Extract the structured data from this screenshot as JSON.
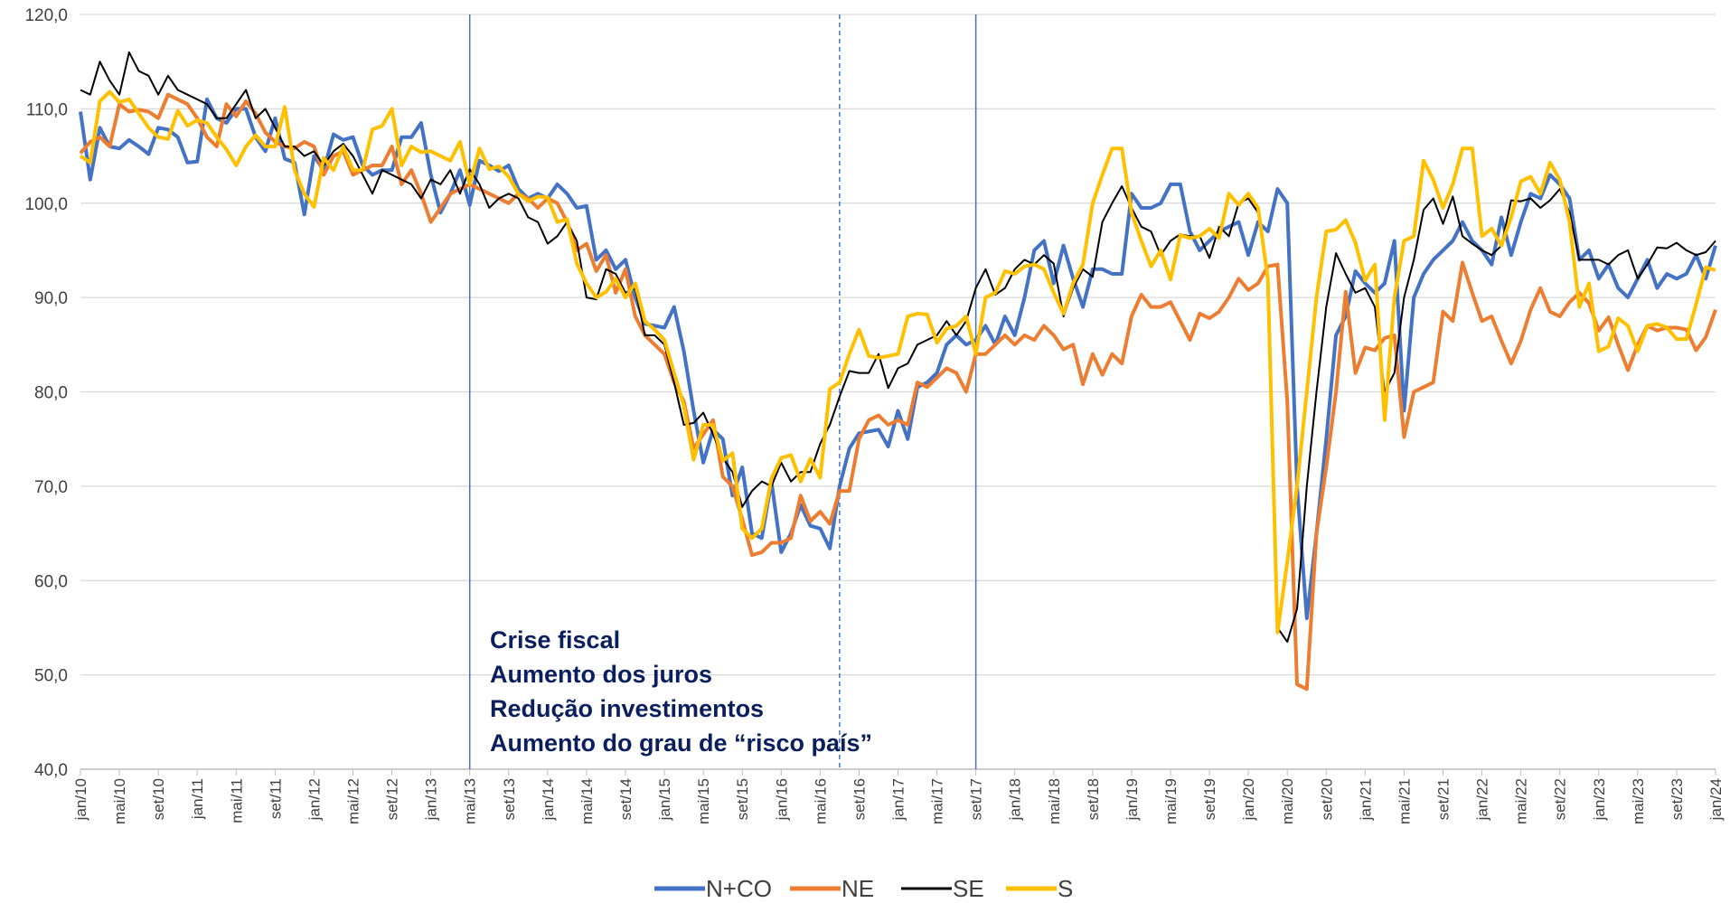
{
  "chart_data": {
    "type": "line",
    "categories": [
      "jan/10",
      null,
      null,
      null,
      "mai/10",
      null,
      null,
      null,
      "set/10",
      null,
      null,
      null,
      "jan/11",
      null,
      null,
      null,
      "mai/11",
      null,
      null,
      null,
      "set/11",
      null,
      null,
      null,
      "jan/12",
      null,
      null,
      null,
      "mai/12",
      null,
      null,
      null,
      "set/12",
      null,
      null,
      null,
      "jan/13",
      null,
      null,
      null,
      "mai/13",
      null,
      null,
      null,
      "set/13",
      null,
      null,
      null,
      "jan/14",
      null,
      null,
      null,
      "mai/14",
      null,
      null,
      null,
      "set/14",
      null,
      null,
      null,
      "jan/15",
      null,
      null,
      null,
      "mai/15",
      null,
      null,
      null,
      "set/15",
      null,
      null,
      null,
      "jan/16",
      null,
      null,
      null,
      "mai/16",
      null,
      null,
      null,
      "set/16",
      null,
      null,
      null,
      "jan/17",
      null,
      null,
      null,
      "mai/17",
      null,
      null,
      null,
      "set/17",
      null,
      null,
      null,
      "jan/18",
      null,
      null,
      null,
      "mai/18",
      null,
      null,
      null,
      "set/18",
      null,
      null,
      null,
      "jan/19",
      null,
      null,
      null,
      "mai/19",
      null,
      null,
      null,
      "set/19",
      null,
      null,
      null,
      "jan/20",
      null,
      null,
      null,
      "mai/20",
      null,
      null,
      null,
      "set/20",
      null,
      null,
      null,
      "jan/21",
      null,
      null,
      null,
      "mai/21",
      null,
      null,
      null,
      "set/21",
      null,
      null,
      null,
      "jan/22",
      null,
      null,
      null,
      "mai/22",
      null,
      null,
      null,
      "set/22",
      null,
      null,
      null,
      "jan/23",
      null,
      null,
      null,
      "mai/23",
      null,
      null,
      null,
      "set/23",
      null,
      null,
      null,
      "jan/24"
    ],
    "series": [
      {
        "name": "N+CO",
        "color": "#4472c4",
        "width": 4,
        "values": [
          109.7,
          102.5,
          108,
          106,
          105.8,
          106.7,
          106,
          105.2,
          108,
          107.8,
          107,
          104.3,
          104.4,
          111,
          109,
          108.5,
          110,
          110,
          107,
          105.5,
          109,
          104.7,
          104.3,
          98.8,
          105,
          103.5,
          107.3,
          106.7,
          107,
          104,
          103,
          103.5,
          103.5,
          107,
          107,
          108.5,
          103,
          99,
          101,
          103.5,
          99.8,
          104.5,
          104,
          103.4,
          104,
          101.5,
          100.5,
          101,
          100.5,
          102,
          101,
          99.5,
          99.7,
          94,
          95,
          93,
          94,
          90,
          87.2,
          87,
          86.8,
          89,
          84.3,
          78,
          72.5,
          76,
          75,
          69,
          72,
          65,
          64.5,
          70.5,
          63,
          65,
          68,
          65.8,
          65.5,
          63.4,
          70,
          74,
          75.6,
          75.8,
          76,
          74.2,
          78,
          75,
          80.5,
          81,
          82,
          85,
          86,
          85,
          85.5,
          87,
          85,
          88,
          86,
          90,
          95,
          96,
          91.5,
          95.5,
          92,
          89,
          93,
          93,
          92.5,
          92.5,
          101,
          99.5,
          99.5,
          100,
          102,
          102,
          97,
          95,
          96,
          97,
          97.5,
          98,
          94.5,
          98,
          97,
          101.5,
          100,
          70,
          56,
          65,
          75,
          86,
          88,
          92.8,
          91.5,
          90.5,
          91.5,
          96,
          78,
          90,
          92.5,
          94,
          95,
          96,
          98,
          96,
          95,
          93.5,
          98.5,
          94.5,
          98,
          101,
          100.5,
          103,
          102,
          100.5,
          94,
          95,
          92,
          93.5,
          91,
          90,
          92,
          94,
          91,
          92.5,
          92,
          92.5,
          94.5,
          92,
          95.5
        ]
      },
      {
        "name": "NE",
        "color": "#ed7d31",
        "width": 4,
        "values": [
          105.3,
          106.5,
          107,
          106,
          110.5,
          109.7,
          109.9,
          109.7,
          109,
          111.5,
          111,
          110.5,
          109,
          107,
          106,
          110.5,
          109.2,
          110.8,
          109.5,
          107.5,
          106.5,
          106,
          105.8,
          106.5,
          106,
          103,
          105,
          105.5,
          103,
          103.5,
          104,
          104,
          106,
          102,
          103.5,
          101,
          98,
          99.5,
          101,
          101.5,
          102,
          101.5,
          101,
          100.5,
          100,
          101,
          100.5,
          99.5,
          100.5,
          100,
          98,
          95,
          95.7,
          92.8,
          94.5,
          90.5,
          93,
          88,
          86,
          85,
          84,
          81,
          79,
          74,
          75.5,
          77,
          71,
          70,
          66.5,
          62.7,
          63,
          64,
          64,
          64.5,
          69,
          66.3,
          67.3,
          66,
          69.5,
          69.5,
          75,
          77,
          77.5,
          76.5,
          77,
          76.5,
          81,
          80.5,
          81.5,
          82.5,
          82,
          80,
          84,
          84,
          85,
          86,
          85,
          86,
          85.5,
          87,
          86,
          84.5,
          85,
          80.8,
          84,
          81.8,
          84,
          83,
          88,
          90.3,
          89,
          89,
          89.5,
          87.5,
          85.5,
          88.3,
          87.8,
          88.5,
          90,
          92,
          90.8,
          91.5,
          93.3,
          93.5,
          79,
          49,
          48.5,
          65,
          72,
          80,
          90.6,
          82,
          84.7,
          84.4,
          85.7,
          86,
          75.2,
          80,
          80.5,
          81,
          88.5,
          87.5,
          93.7,
          90.5,
          87.5,
          88,
          85.4,
          83,
          85.4,
          88.7,
          91,
          88.5,
          88,
          89.5,
          90.5,
          89.4,
          86.5,
          87.9,
          85,
          82.3,
          85,
          87,
          86.5,
          86.8,
          86.8,
          86.6,
          84.4,
          85.8,
          88.7
        ]
      },
      {
        "name": "SE",
        "color": "#000000",
        "width": 2,
        "values": [
          112,
          111.5,
          115,
          113,
          111.5,
          116,
          114,
          113.5,
          111.5,
          113.5,
          112,
          111.5,
          111,
          110.5,
          109,
          109,
          110.5,
          112,
          109,
          110,
          108,
          106,
          106,
          105,
          105.5,
          104,
          105.5,
          106.3,
          105,
          103,
          101,
          103.5,
          103,
          102.5,
          102,
          100.5,
          102.5,
          102,
          103.5,
          101,
          103.6,
          102,
          99.5,
          100.5,
          101,
          100.5,
          98.5,
          98,
          95.7,
          96.5,
          98,
          96,
          90,
          89.8,
          93,
          92.5,
          90.5,
          91,
          86,
          86,
          85,
          81,
          76.5,
          76.7,
          77.8,
          75.5,
          73,
          71.5,
          67.8,
          69.5,
          70.5,
          70,
          72.5,
          70.5,
          71.5,
          71.5,
          74.5,
          76.5,
          79.5,
          82.2,
          82,
          82,
          84,
          80.4,
          82.5,
          83,
          85,
          85.5,
          86,
          87.5,
          86,
          87.5,
          91,
          93,
          90.3,
          91,
          93,
          94,
          93.5,
          94.5,
          93.6,
          88,
          91,
          93,
          92.2,
          98,
          100,
          101.8,
          99.5,
          97.5,
          97,
          94.5,
          96,
          96.7,
          96.5,
          96.5,
          94.2,
          97.5,
          96.5,
          100,
          100.5,
          99,
          92,
          55,
          53.5,
          57,
          70,
          80,
          89,
          94.7,
          92.5,
          90.5,
          91,
          89,
          80,
          82,
          90,
          94,
          99.3,
          100.5,
          97.8,
          100.7,
          96.5,
          95.7,
          95,
          94.5,
          95.5,
          100.3,
          100.2,
          100.5,
          99.5,
          100.3,
          101.5,
          99,
          94,
          94,
          94,
          93.5,
          94.5,
          95,
          92,
          93.5,
          95.3,
          95.2,
          95.8,
          95,
          94.5,
          94.8,
          96
        ]
      },
      {
        "name": "S",
        "color": "#ffc000",
        "width": 4,
        "values": [
          105,
          104.3,
          110.8,
          111.8,
          110.7,
          111,
          109.5,
          108,
          107,
          106.8,
          109.8,
          108.2,
          108.8,
          108.5,
          107,
          105.7,
          104,
          106,
          107.2,
          106,
          106,
          110.2,
          103.5,
          101,
          99.6,
          104.8,
          103.5,
          106,
          103.5,
          103.5,
          107.8,
          108.2,
          110,
          104,
          106,
          105.4,
          105.5,
          105,
          104.5,
          106.5,
          102,
          105.8,
          103.6,
          103.9,
          102.8,
          101,
          100.2,
          100.7,
          100.6,
          98,
          98.3,
          93.6,
          91.5,
          90,
          90.6,
          92,
          90,
          91.5,
          87.5,
          86.6,
          85.5,
          82,
          78.5,
          72.8,
          76.5,
          76.5,
          72.7,
          73.5,
          65.5,
          64.5,
          65.5,
          70.8,
          73,
          73.3,
          70.5,
          72.9,
          70.9,
          80.3,
          81,
          84,
          86.6,
          83.8,
          83.6,
          83.8,
          84,
          88,
          88.3,
          88.2,
          85.2,
          86.7,
          87,
          88,
          84,
          90,
          90.5,
          92.8,
          92.5,
          93.3,
          93.5,
          93,
          90.5,
          88.3,
          91.5,
          93.5,
          100,
          103,
          105.8,
          105.8,
          99,
          96,
          93.3,
          95,
          91.9,
          96.6,
          96.3,
          96.5,
          97.3,
          96.3,
          101,
          99.8,
          101,
          99.5,
          92,
          54.5,
          62,
          70,
          80,
          90,
          97,
          97.2,
          98.2,
          95.8,
          91.8,
          93.5,
          77,
          90,
          96,
          96.5,
          104.5,
          102.5,
          99.5,
          102,
          105.8,
          105.8,
          96.5,
          97.3,
          95.5,
          98.5,
          102.3,
          102.8,
          101,
          104.3,
          102.5,
          98,
          89,
          91.5,
          84.3,
          84.8,
          87.8,
          87,
          84.3,
          87,
          87.2,
          86.8,
          85.6,
          85.6,
          89.3,
          93.2,
          92.9
        ]
      }
    ],
    "ylim": [
      40,
      120
    ],
    "yticks": [
      {
        "value": 40,
        "label": "40,0"
      },
      {
        "value": 50,
        "label": "50,0"
      },
      {
        "value": 60,
        "label": "60,0"
      },
      {
        "value": 70,
        "label": "70,0"
      },
      {
        "value": 80,
        "label": "80,0"
      },
      {
        "value": 90,
        "label": "90,0"
      },
      {
        "value": 100,
        "label": "100,0"
      },
      {
        "value": 110,
        "label": "110,0"
      },
      {
        "value": 120,
        "label": "120,0"
      }
    ],
    "grid": true,
    "legend": "bottom",
    "vlines": [
      {
        "at": 40,
        "dashed": false,
        "color": "#4472c4"
      },
      {
        "at": 78,
        "dashed": true,
        "color": "#4472c4"
      },
      {
        "at": 92,
        "dashed": false,
        "color": "#4472c4"
      }
    ],
    "annotation": [
      "Crise fiscal",
      "Aumento dos juros",
      "Redução investimentos",
      "Aumento do grau de “risco país”"
    ]
  }
}
